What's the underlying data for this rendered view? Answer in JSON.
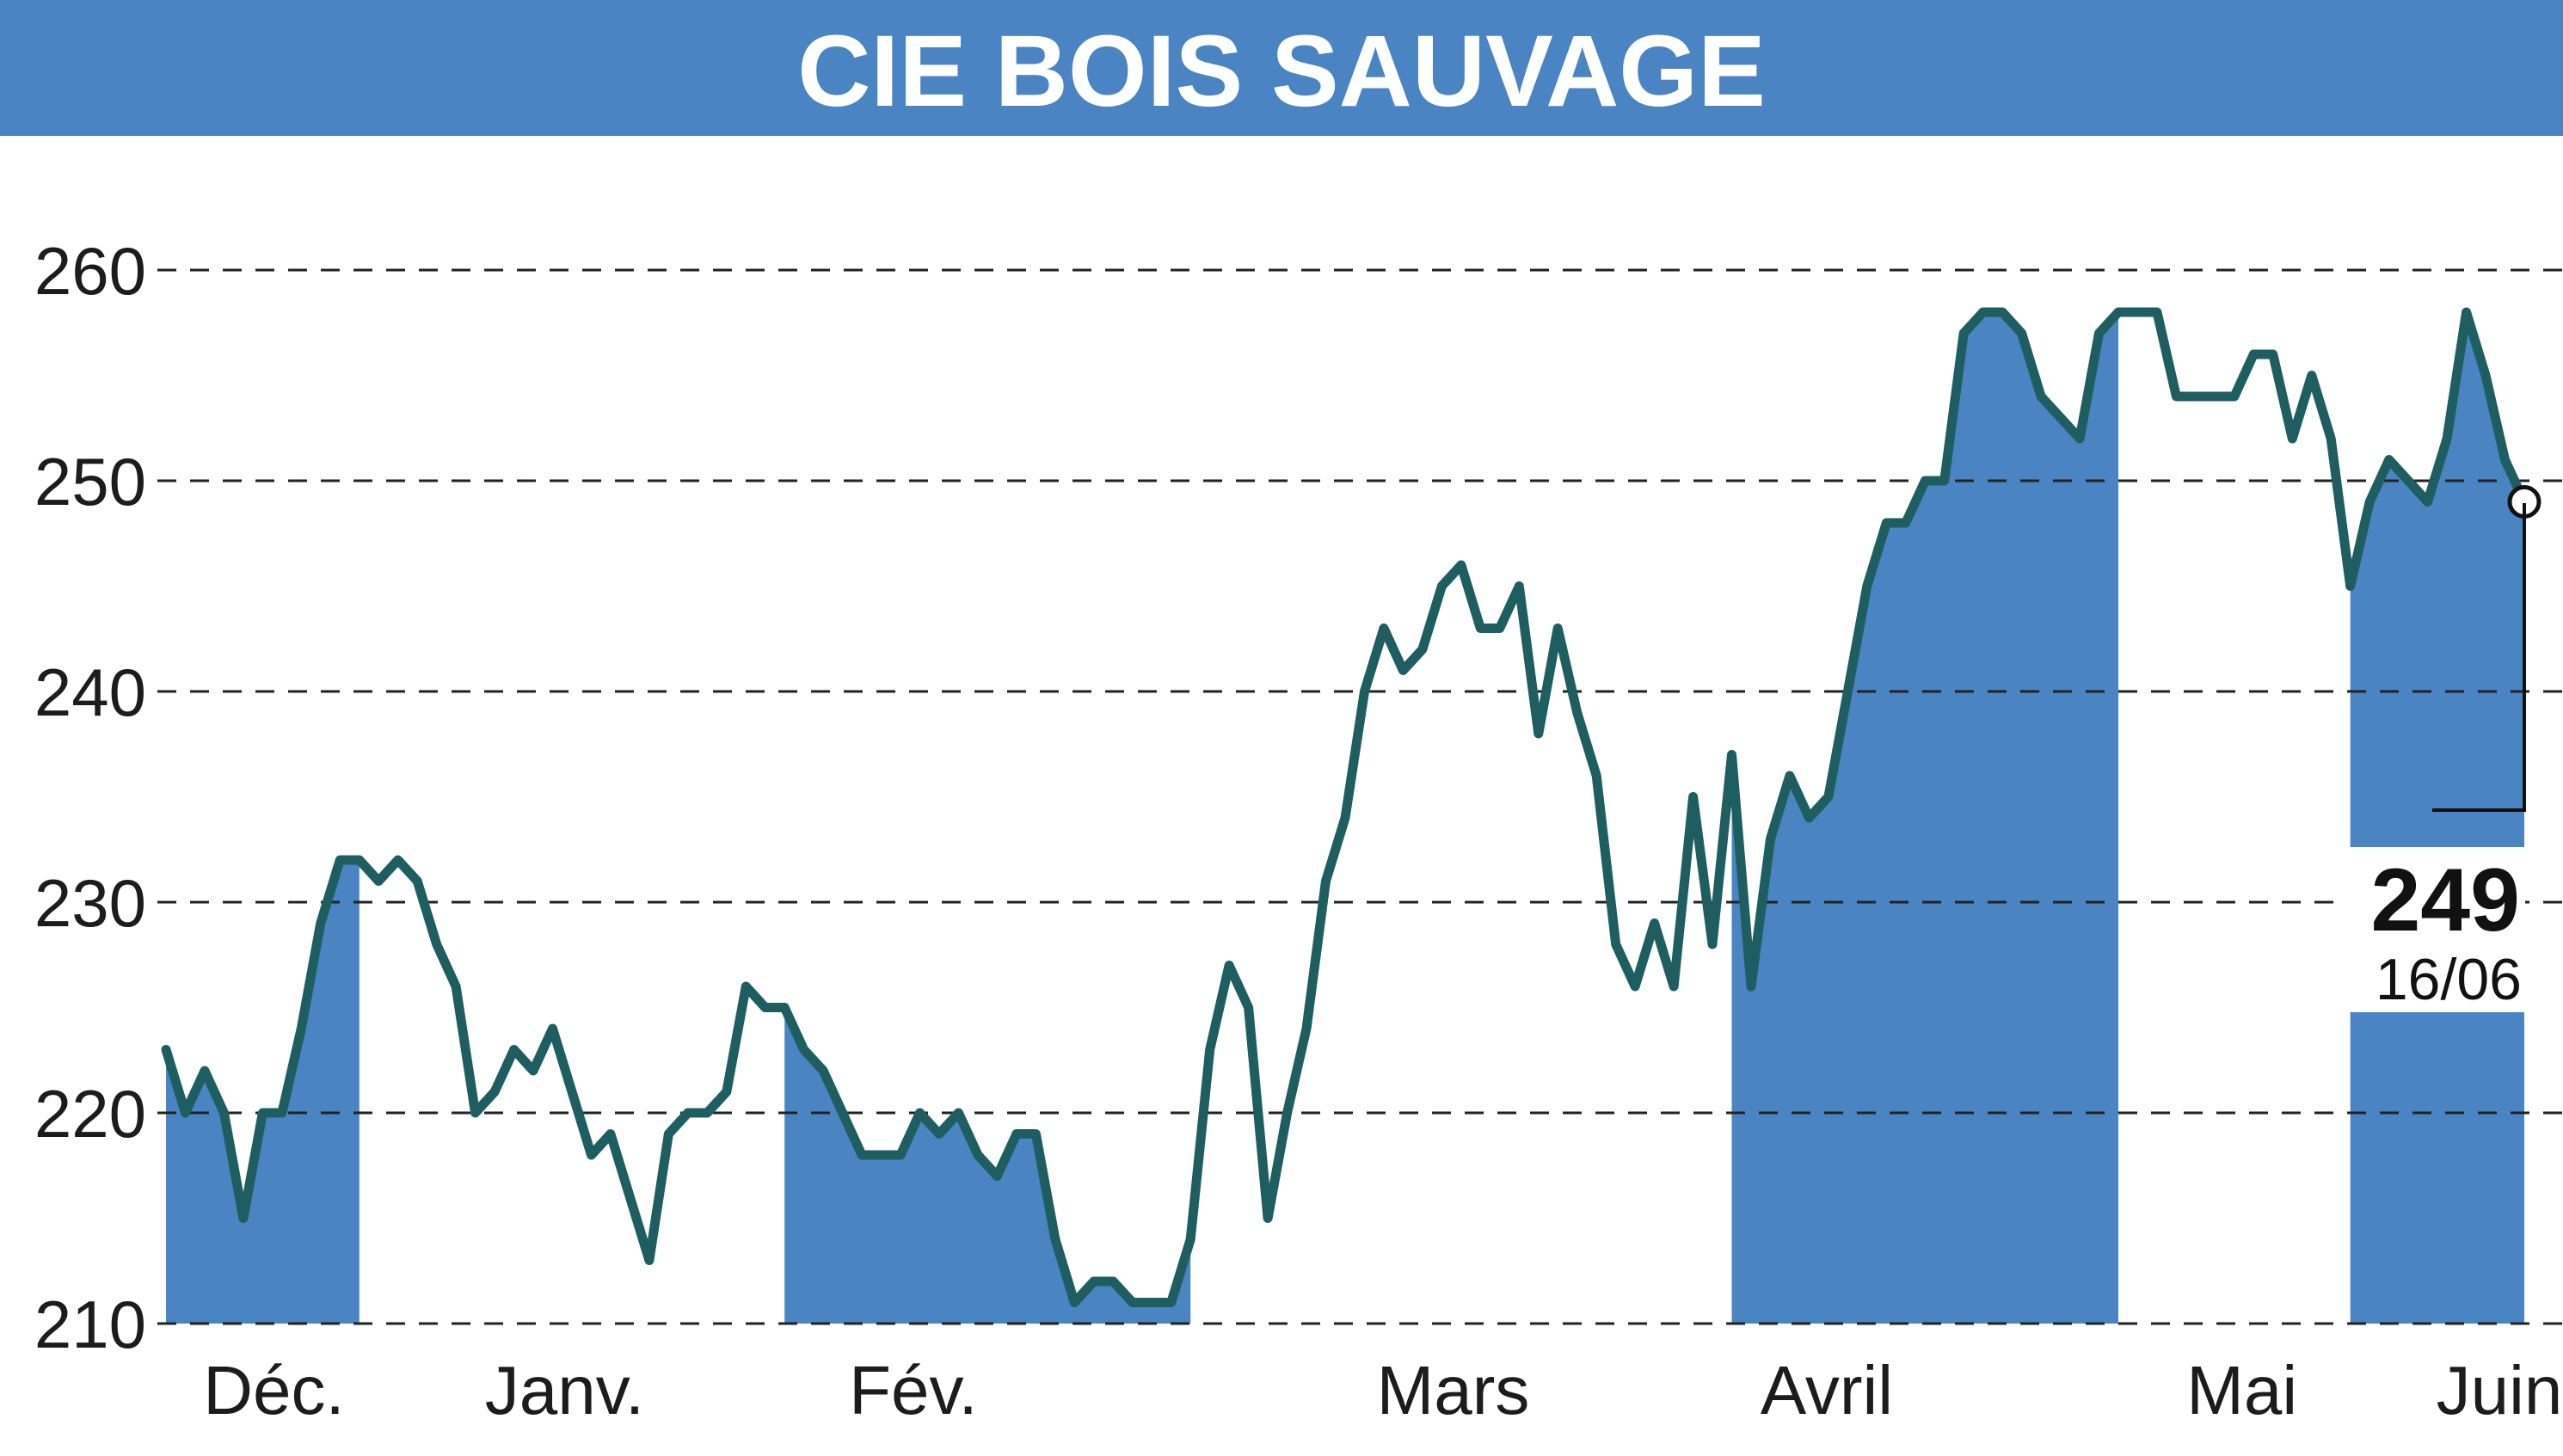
{
  "chart_data": {
    "type": "line",
    "title": "CIE BOIS SAUVAGE",
    "ylim": [
      210,
      262
    ],
    "yticks": [
      "210",
      "220",
      "230",
      "240",
      "250",
      "260"
    ],
    "grid": true,
    "months": [
      "Déc.",
      "Janv.",
      "Fév.",
      "Mars",
      "Avril",
      "Mai",
      "Juin"
    ],
    "last_value": "249",
    "last_date": "16/06",
    "series": [
      {
        "values": [
          223,
          220,
          222,
          220,
          215,
          220,
          220,
          224,
          229,
          232,
          232,
          231,
          232,
          231,
          228,
          226,
          220,
          221,
          223,
          222,
          224,
          221,
          218,
          219,
          216,
          213,
          219,
          220,
          220,
          221,
          226,
          225,
          225,
          223,
          222,
          220,
          218,
          218,
          218,
          220,
          219,
          220,
          218,
          217,
          219,
          219,
          214,
          211,
          212,
          212,
          211,
          211,
          211,
          214,
          223,
          227,
          225,
          215,
          220,
          224,
          231,
          234,
          240,
          243,
          241,
          242,
          245,
          246,
          243,
          243,
          245,
          238,
          243,
          239,
          236,
          228,
          226,
          229,
          226,
          235,
          228,
          237,
          226,
          233,
          236,
          234,
          235,
          240,
          245,
          248,
          248,
          250,
          250,
          257,
          258,
          258,
          257,
          254,
          253,
          252,
          257,
          258,
          258,
          258,
          254,
          254,
          254,
          254,
          256,
          256,
          252,
          255,
          252,
          245,
          249,
          251,
          250,
          249,
          252,
          258,
          255,
          251,
          249
        ]
      }
    ],
    "colors": {
      "title_bar": "#4a84c2",
      "line": "#1f5e60",
      "fill": "#4a84c2",
      "grid": "#222222"
    }
  }
}
